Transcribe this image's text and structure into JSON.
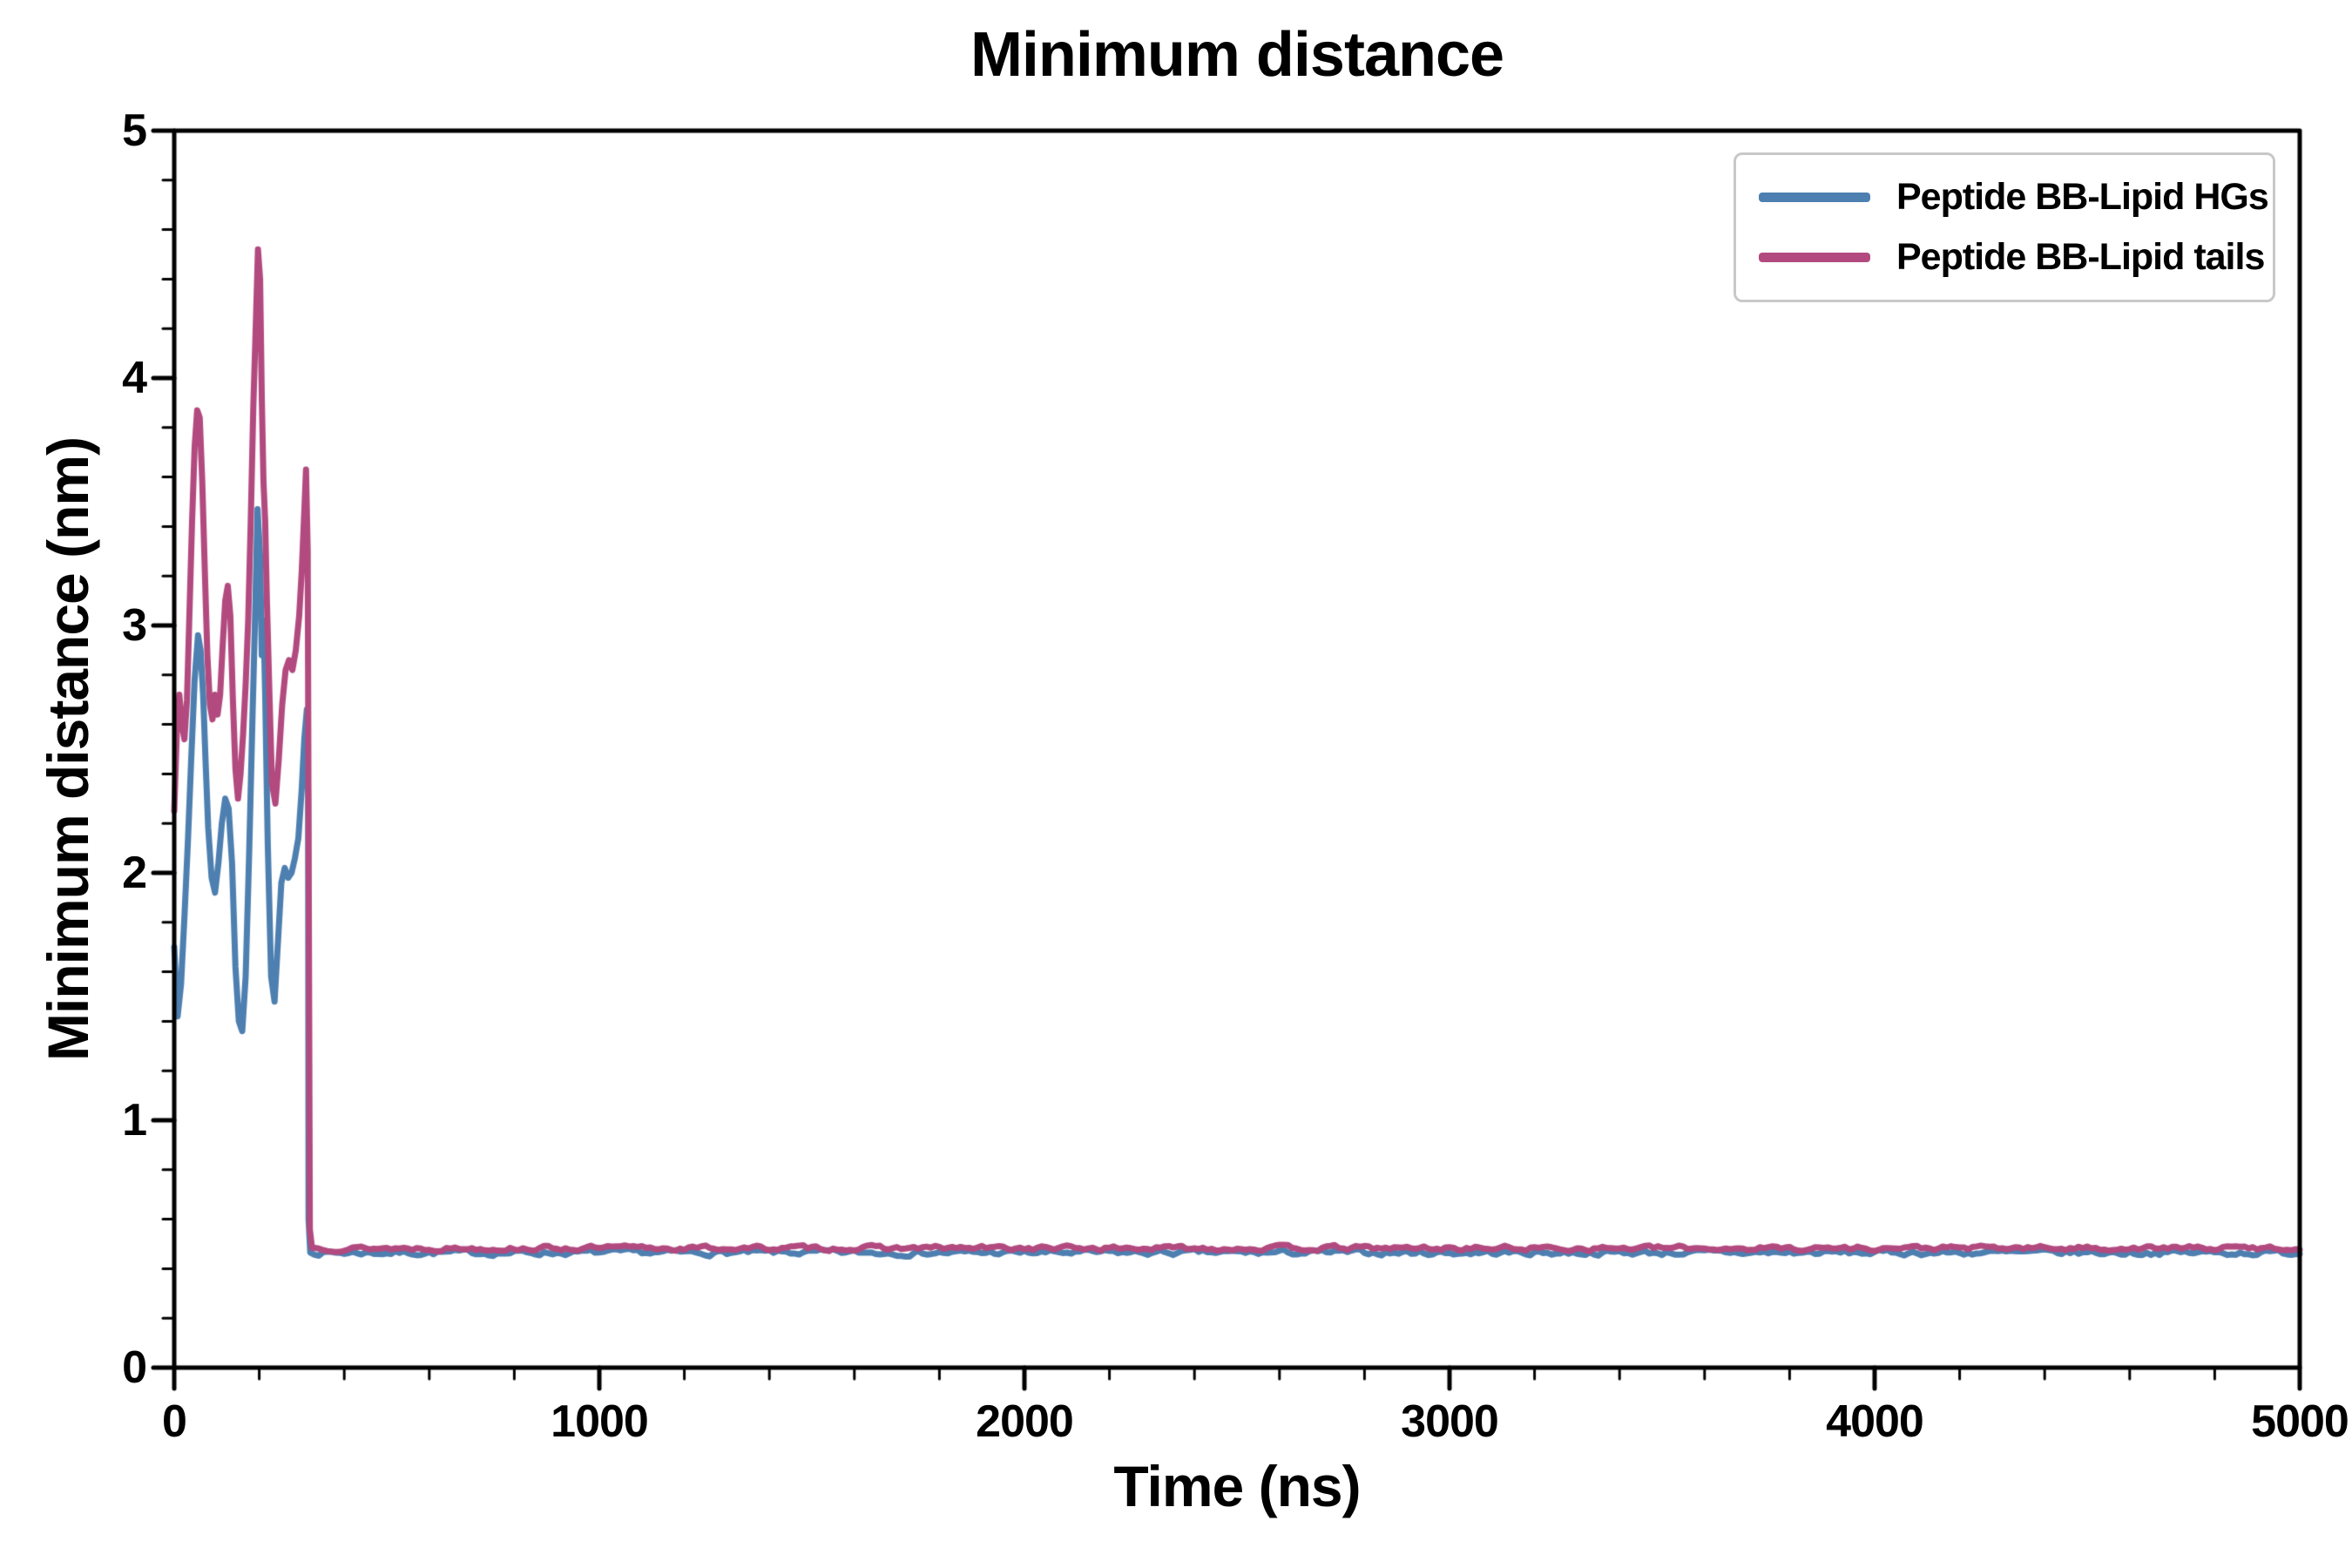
{
  "chart_data": {
    "type": "line",
    "title": "Minimum distance",
    "xlabel": "Time (ns)",
    "ylabel": "Minimum distance (nm)",
    "xlim": [
      0,
      5000
    ],
    "ylim": [
      0,
      5
    ],
    "xticks": [
      0,
      1000,
      2000,
      3000,
      4000,
      5000
    ],
    "yticks": [
      0,
      1,
      2,
      3,
      4,
      5
    ],
    "x_minor_step": 200,
    "y_minor_step": 0.2,
    "grid": false,
    "legend_position": "upper right",
    "colors": {
      "axis": "#000000",
      "background": "#ffffff",
      "legend_border": "#c8c8c8"
    },
    "series": [
      {
        "name": "Peptide BB-Lipid HGs",
        "color": "#4d7fb0",
        "line_width": 7,
        "points": [
          [
            0,
            1.7
          ],
          [
            8,
            1.42
          ],
          [
            16,
            1.55
          ],
          [
            24,
            1.82
          ],
          [
            32,
            2.12
          ],
          [
            40,
            2.46
          ],
          [
            48,
            2.78
          ],
          [
            56,
            2.96
          ],
          [
            62,
            2.9
          ],
          [
            68,
            2.72
          ],
          [
            74,
            2.44
          ],
          [
            80,
            2.18
          ],
          [
            88,
            1.98
          ],
          [
            96,
            1.92
          ],
          [
            104,
            2.04
          ],
          [
            112,
            2.2
          ],
          [
            120,
            2.3
          ],
          [
            128,
            2.26
          ],
          [
            136,
            2.04
          ],
          [
            144,
            1.62
          ],
          [
            152,
            1.4
          ],
          [
            160,
            1.36
          ],
          [
            168,
            1.58
          ],
          [
            176,
            2.06
          ],
          [
            184,
            2.62
          ],
          [
            190,
            3.02
          ],
          [
            196,
            3.47
          ],
          [
            202,
            3.28
          ],
          [
            206,
            2.88
          ],
          [
            210,
            3.02
          ],
          [
            214,
            2.72
          ],
          [
            220,
            2.12
          ],
          [
            228,
            1.58
          ],
          [
            236,
            1.48
          ],
          [
            244,
            1.72
          ],
          [
            252,
            1.96
          ],
          [
            260,
            2.02
          ],
          [
            268,
            1.98
          ],
          [
            276,
            2.0
          ],
          [
            284,
            2.06
          ],
          [
            292,
            2.14
          ],
          [
            300,
            2.34
          ],
          [
            306,
            2.54
          ],
          [
            312,
            2.66
          ],
          [
            315,
            2.3
          ],
          [
            316,
            0.6
          ],
          [
            320,
            0.465
          ]
        ],
        "tail": {
          "from": 330,
          "to": 5000,
          "step": 10,
          "value": 0.465,
          "noise": 0.018,
          "seed": 7
        }
      },
      {
        "name": "Peptide BB-Lipid tails",
        "color": "#b24a7f",
        "line_width": 7,
        "points": [
          [
            0,
            2.25
          ],
          [
            6,
            2.56
          ],
          [
            12,
            2.72
          ],
          [
            18,
            2.6
          ],
          [
            24,
            2.54
          ],
          [
            30,
            2.7
          ],
          [
            36,
            3.06
          ],
          [
            42,
            3.42
          ],
          [
            48,
            3.72
          ],
          [
            54,
            3.87
          ],
          [
            60,
            3.84
          ],
          [
            66,
            3.58
          ],
          [
            72,
            3.22
          ],
          [
            78,
            2.88
          ],
          [
            84,
            2.68
          ],
          [
            90,
            2.62
          ],
          [
            96,
            2.72
          ],
          [
            102,
            2.64
          ],
          [
            108,
            2.72
          ],
          [
            114,
            2.92
          ],
          [
            120,
            3.1
          ],
          [
            126,
            3.16
          ],
          [
            132,
            3.04
          ],
          [
            138,
            2.7
          ],
          [
            144,
            2.42
          ],
          [
            150,
            2.3
          ],
          [
            156,
            2.4
          ],
          [
            162,
            2.56
          ],
          [
            168,
            2.76
          ],
          [
            174,
            3.02
          ],
          [
            180,
            3.42
          ],
          [
            186,
            3.88
          ],
          [
            192,
            4.22
          ],
          [
            197,
            4.52
          ],
          [
            202,
            4.4
          ],
          [
            206,
            3.92
          ],
          [
            210,
            3.58
          ],
          [
            214,
            3.42
          ],
          [
            218,
            3.1
          ],
          [
            224,
            2.72
          ],
          [
            230,
            2.36
          ],
          [
            238,
            2.28
          ],
          [
            246,
            2.46
          ],
          [
            254,
            2.68
          ],
          [
            262,
            2.82
          ],
          [
            270,
            2.86
          ],
          [
            278,
            2.82
          ],
          [
            286,
            2.9
          ],
          [
            294,
            3.04
          ],
          [
            300,
            3.22
          ],
          [
            306,
            3.46
          ],
          [
            310,
            3.63
          ],
          [
            314,
            3.3
          ],
          [
            318,
            1.1
          ],
          [
            319,
            0.56
          ],
          [
            324,
            0.485
          ]
        ],
        "tail": {
          "from": 330,
          "to": 5000,
          "step": 10,
          "value": 0.483,
          "noise": 0.016,
          "seed": 13
        }
      }
    ]
  }
}
